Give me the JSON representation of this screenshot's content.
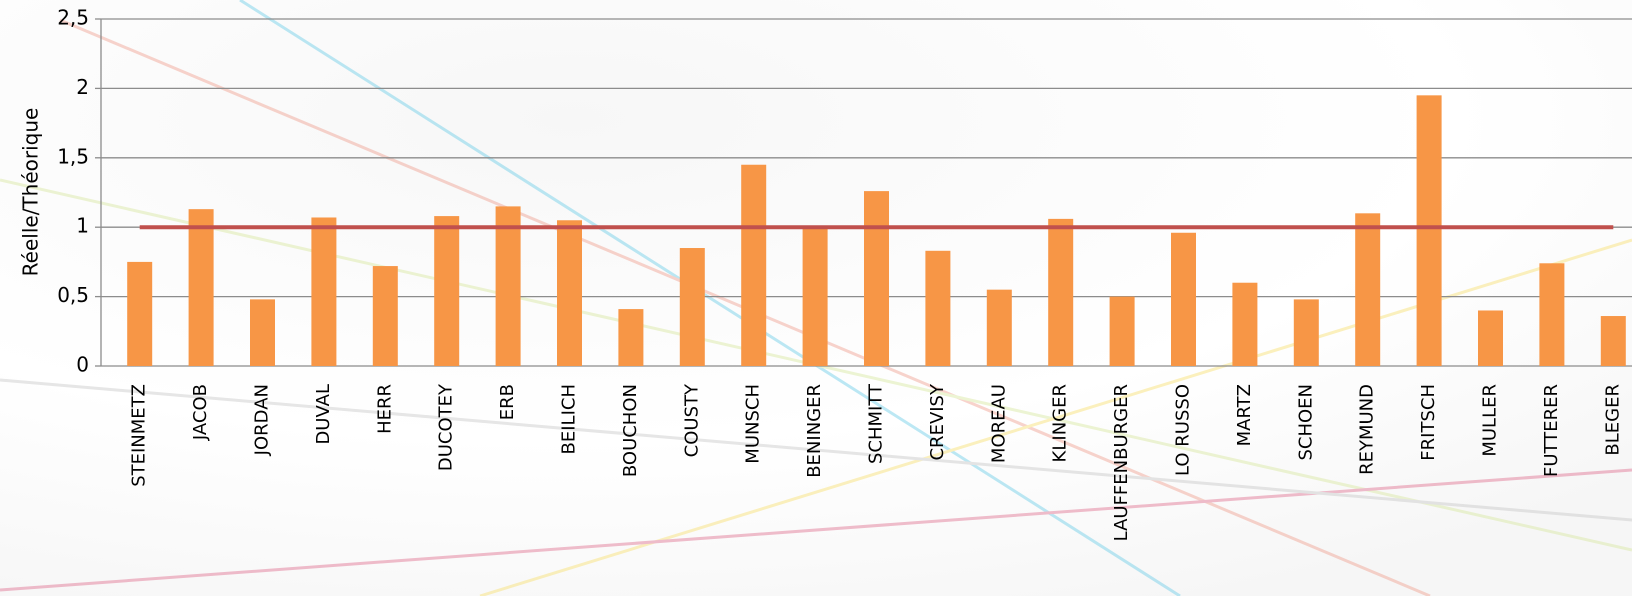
{
  "chart_data": {
    "type": "bar",
    "y_label": "Réelle/Théorique",
    "categories": [
      "STEINMETZ",
      "JACOB",
      "JORDAN",
      "DUVAL",
      "HERR",
      "DUCOTEY",
      "ERB",
      "BEILICH",
      "BOUCHON",
      "COUSTY",
      "MUNSCH",
      "BENINGER",
      "SCHMITT",
      "CREVISY",
      "MOREAU",
      "KLINGER",
      "LAUFFENBURGER",
      "LO RUSSO",
      "MARTZ",
      "SCHOEN",
      "REYMUND",
      "FRITSCH",
      "MULLER",
      "FUTTERER",
      "BLEGER"
    ],
    "series": [
      {
        "type": "bar",
        "color": "#f79646",
        "values": [
          0.75,
          1.13,
          0.48,
          1.07,
          0.72,
          1.08,
          1.15,
          1.05,
          0.41,
          0.85,
          1.45,
          1.0,
          1.26,
          0.83,
          0.55,
          1.06,
          0.5,
          0.96,
          0.6,
          0.48,
          1.1,
          1.95,
          0.4,
          0.74,
          0.36
        ]
      },
      {
        "type": "line",
        "color": "#c0504d",
        "values": [
          1,
          1,
          1,
          1,
          1,
          1,
          1,
          1,
          1,
          1,
          1,
          1,
          1,
          1,
          1,
          1,
          1,
          1,
          1,
          1,
          1,
          1,
          1,
          1,
          1
        ]
      }
    ],
    "ylim": [
      0,
      2.5
    ],
    "yticks": [
      0,
      {
        "value": 0.5,
        "label": "0,5"
      },
      1,
      {
        "value": 1.5,
        "label": "1,5"
      },
      2,
      {
        "value": 2.5,
        "label": "2,5"
      }
    ],
    "grid": true
  }
}
